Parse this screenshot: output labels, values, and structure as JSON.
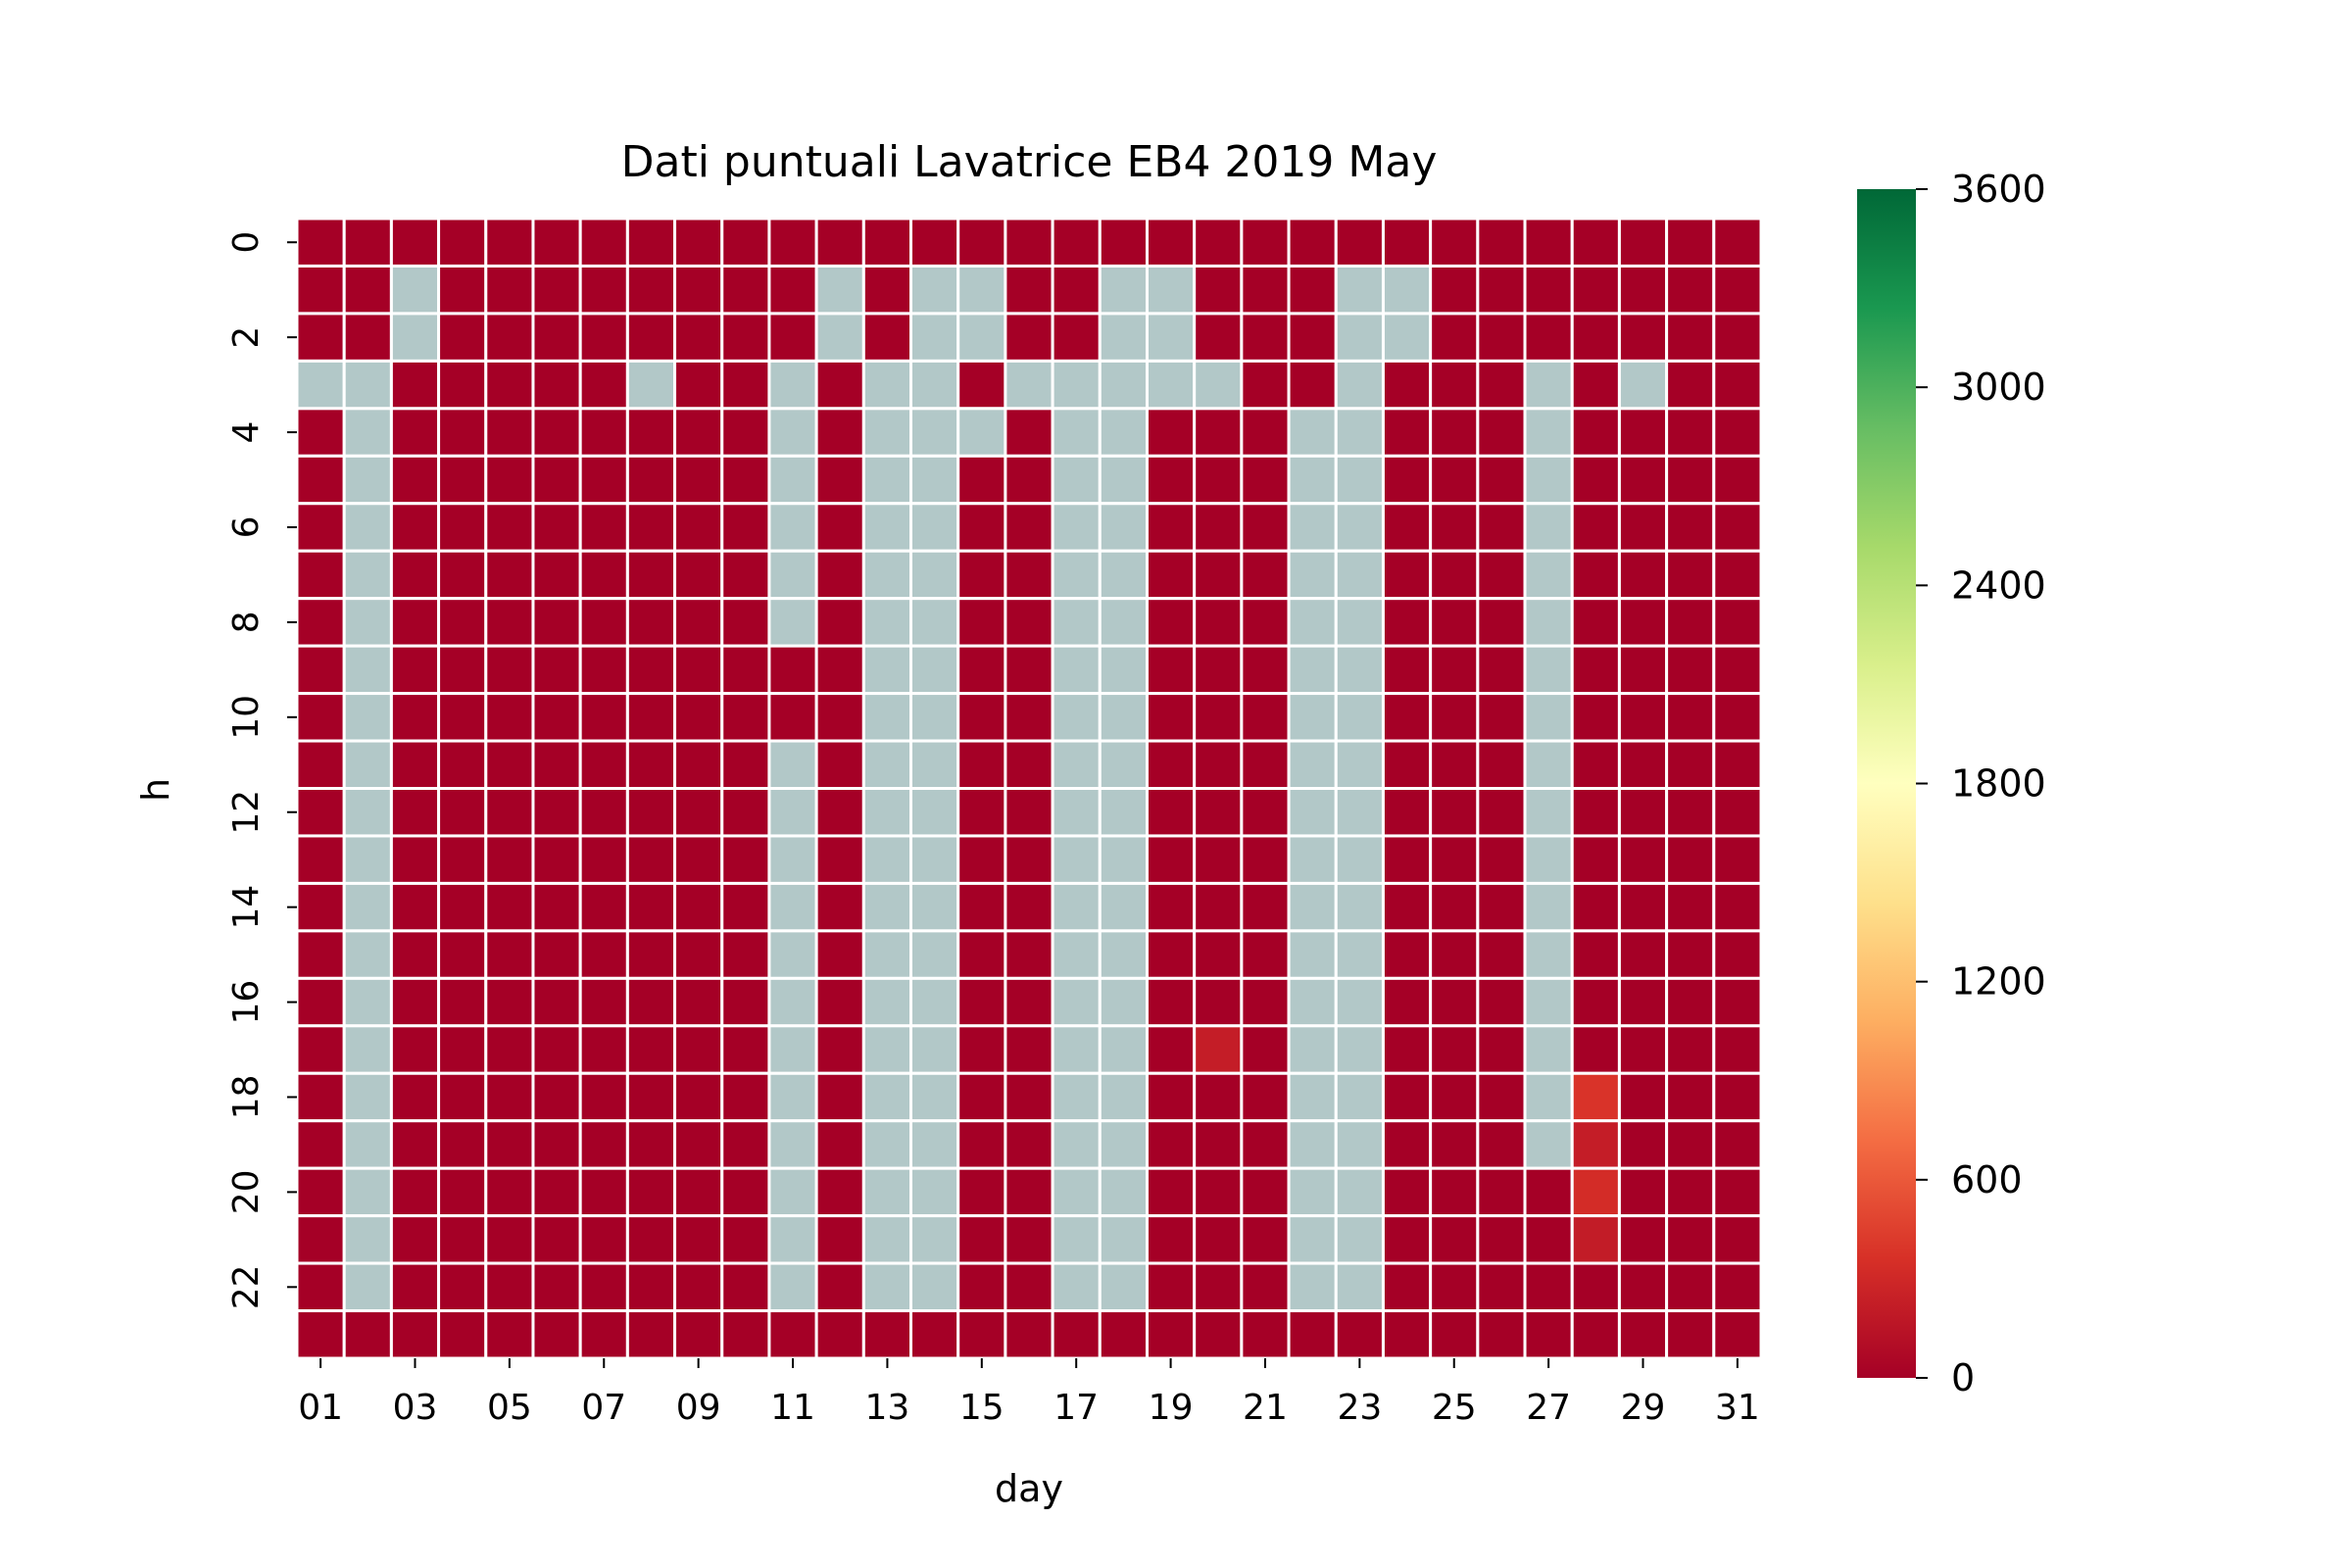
{
  "chart_data": {
    "type": "heatmap",
    "title": "Dati puntuali Lavatrice EB4 2019 May",
    "xlabel": "day",
    "ylabel": "h",
    "x_categories": [
      "01",
      "02",
      "03",
      "04",
      "05",
      "06",
      "07",
      "08",
      "09",
      "10",
      "11",
      "12",
      "13",
      "14",
      "15",
      "16",
      "17",
      "18",
      "19",
      "20",
      "21",
      "22",
      "23",
      "24",
      "25",
      "26",
      "27",
      "28",
      "29",
      "30",
      "31"
    ],
    "x_tick_labels": [
      "01",
      "03",
      "05",
      "07",
      "09",
      "11",
      "13",
      "15",
      "17",
      "19",
      "21",
      "23",
      "25",
      "27",
      "29",
      "31"
    ],
    "y_categories": [
      "0",
      "1",
      "2",
      "3",
      "4",
      "5",
      "6",
      "7",
      "8",
      "9",
      "10",
      "11",
      "12",
      "13",
      "14",
      "15",
      "16",
      "17",
      "18",
      "19",
      "20",
      "21",
      "22",
      "23"
    ],
    "y_tick_labels": [
      "0",
      "2",
      "4",
      "6",
      "8",
      "10",
      "12",
      "14",
      "16",
      "18",
      "20",
      "22"
    ],
    "colorbar": {
      "min": 0,
      "max": 3600,
      "ticks": [
        "0",
        "600",
        "1200",
        "1800",
        "2400",
        "3000",
        "3600"
      ],
      "colormap": "RdYlGn",
      "stops": [
        "#a50026",
        "#d73027",
        "#f46d43",
        "#fdae61",
        "#fee08b",
        "#ffffbf",
        "#d9ef8b",
        "#a6d96a",
        "#66bd63",
        "#1a9850",
        "#006837"
      ]
    },
    "missing_color": "#b2c8c8",
    "cell_border_color": "#ffffff",
    "grid": false,
    "values_by_day": [
      [
        0,
        0,
        0,
        null,
        0,
        0,
        0,
        0,
        0,
        0,
        0,
        0,
        0,
        0,
        0,
        0,
        0,
        0,
        0,
        0,
        0,
        0,
        0,
        0
      ],
      [
        0,
        0,
        0,
        null,
        null,
        null,
        null,
        null,
        null,
        null,
        null,
        null,
        null,
        null,
        null,
        null,
        null,
        null,
        null,
        null,
        null,
        null,
        null,
        0
      ],
      [
        0,
        null,
        null,
        0,
        0,
        0,
        0,
        0,
        0,
        0,
        0,
        0,
        0,
        0,
        0,
        0,
        0,
        0,
        0,
        0,
        0,
        0,
        0,
        0
      ],
      [
        0,
        0,
        0,
        0,
        0,
        0,
        0,
        0,
        0,
        0,
        0,
        0,
        0,
        0,
        0,
        0,
        0,
        0,
        0,
        0,
        0,
        0,
        0,
        0
      ],
      [
        0,
        0,
        0,
        0,
        0,
        0,
        0,
        0,
        0,
        0,
        0,
        0,
        0,
        0,
        0,
        0,
        0,
        0,
        0,
        0,
        0,
        0,
        0,
        0
      ],
      [
        0,
        0,
        0,
        0,
        0,
        0,
        0,
        0,
        0,
        0,
        0,
        0,
        0,
        0,
        0,
        0,
        0,
        0,
        0,
        0,
        0,
        0,
        0,
        0
      ],
      [
        0,
        0,
        0,
        0,
        0,
        0,
        0,
        0,
        0,
        0,
        0,
        0,
        0,
        0,
        0,
        0,
        0,
        0,
        0,
        0,
        0,
        0,
        0,
        0
      ],
      [
        0,
        0,
        0,
        null,
        0,
        0,
        0,
        0,
        0,
        0,
        0,
        0,
        0,
        0,
        0,
        0,
        0,
        0,
        0,
        0,
        0,
        0,
        0,
        0
      ],
      [
        0,
        0,
        0,
        0,
        0,
        0,
        0,
        0,
        0,
        0,
        0,
        0,
        0,
        0,
        0,
        0,
        0,
        0,
        0,
        0,
        0,
        0,
        0,
        0
      ],
      [
        0,
        0,
        0,
        0,
        0,
        0,
        0,
        0,
        0,
        0,
        0,
        0,
        0,
        0,
        0,
        0,
        0,
        0,
        0,
        0,
        0,
        0,
        0,
        0
      ],
      [
        0,
        0,
        0,
        null,
        null,
        null,
        null,
        null,
        null,
        0,
        0,
        null,
        null,
        null,
        null,
        null,
        null,
        null,
        null,
        null,
        null,
        null,
        null,
        0
      ],
      [
        0,
        null,
        null,
        0,
        0,
        0,
        0,
        0,
        0,
        0,
        0,
        0,
        0,
        0,
        0,
        0,
        0,
        0,
        0,
        0,
        0,
        0,
        0,
        0
      ],
      [
        0,
        0,
        0,
        null,
        null,
        null,
        null,
        null,
        null,
        null,
        null,
        null,
        null,
        null,
        null,
        null,
        null,
        null,
        null,
        null,
        null,
        null,
        null,
        0
      ],
      [
        0,
        null,
        null,
        null,
        null,
        null,
        null,
        null,
        null,
        null,
        null,
        null,
        null,
        null,
        null,
        null,
        null,
        null,
        null,
        null,
        null,
        null,
        null,
        0
      ],
      [
        0,
        null,
        null,
        0,
        null,
        0,
        0,
        0,
        0,
        0,
        0,
        0,
        0,
        0,
        0,
        0,
        0,
        0,
        0,
        0,
        0,
        0,
        0,
        0
      ],
      [
        0,
        0,
        0,
        null,
        0,
        0,
        0,
        0,
        0,
        0,
        0,
        0,
        0,
        0,
        0,
        0,
        0,
        0,
        0,
        0,
        0,
        0,
        0,
        0
      ],
      [
        0,
        0,
        0,
        null,
        null,
        null,
        null,
        null,
        null,
        null,
        null,
        null,
        null,
        null,
        null,
        null,
        null,
        null,
        null,
        null,
        null,
        null,
        null,
        0
      ],
      [
        0,
        null,
        null,
        null,
        null,
        null,
        null,
        null,
        null,
        null,
        null,
        null,
        null,
        null,
        null,
        null,
        null,
        null,
        null,
        null,
        null,
        null,
        null,
        0
      ],
      [
        0,
        null,
        null,
        null,
        0,
        0,
        0,
        0,
        0,
        0,
        0,
        0,
        0,
        0,
        0,
        0,
        0,
        0,
        0,
        0,
        0,
        0,
        0,
        0
      ],
      [
        0,
        0,
        0,
        null,
        0,
        0,
        0,
        0,
        0,
        0,
        0,
        0,
        0,
        0,
        0,
        0,
        0,
        220,
        0,
        0,
        0,
        0,
        0,
        0
      ],
      [
        0,
        0,
        0,
        0,
        0,
        0,
        0,
        0,
        0,
        0,
        0,
        0,
        0,
        0,
        0,
        0,
        0,
        0,
        0,
        0,
        0,
        0,
        0,
        0
      ],
      [
        0,
        0,
        0,
        0,
        null,
        null,
        null,
        null,
        null,
        null,
        null,
        null,
        null,
        null,
        null,
        null,
        null,
        null,
        null,
        null,
        null,
        null,
        null,
        0
      ],
      [
        0,
        null,
        null,
        null,
        null,
        null,
        null,
        null,
        null,
        null,
        null,
        null,
        null,
        null,
        null,
        null,
        null,
        null,
        null,
        null,
        null,
        null,
        null,
        0
      ],
      [
        0,
        null,
        null,
        0,
        0,
        0,
        0,
        0,
        0,
        0,
        0,
        0,
        0,
        0,
        0,
        0,
        0,
        0,
        0,
        0,
        0,
        0,
        0,
        0
      ],
      [
        0,
        0,
        0,
        0,
        0,
        0,
        0,
        0,
        0,
        0,
        0,
        0,
        0,
        0,
        0,
        0,
        0,
        0,
        0,
        0,
        0,
        0,
        0,
        0
      ],
      [
        0,
        0,
        0,
        0,
        0,
        0,
        0,
        0,
        0,
        0,
        0,
        0,
        0,
        0,
        0,
        0,
        0,
        0,
        0,
        0,
        0,
        0,
        0,
        0
      ],
      [
        0,
        0,
        0,
        null,
        null,
        null,
        null,
        null,
        null,
        null,
        null,
        null,
        null,
        null,
        null,
        null,
        null,
        null,
        null,
        null,
        0,
        0,
        0,
        0
      ],
      [
        0,
        0,
        0,
        0,
        0,
        0,
        0,
        0,
        0,
        0,
        0,
        0,
        0,
        0,
        0,
        0,
        0,
        0,
        380,
        220,
        330,
        210,
        0,
        0
      ],
      [
        0,
        0,
        0,
        null,
        0,
        0,
        0,
        0,
        0,
        0,
        0,
        0,
        0,
        0,
        0,
        0,
        0,
        0,
        0,
        0,
        0,
        0,
        0,
        0
      ],
      [
        0,
        0,
        0,
        0,
        0,
        0,
        0,
        0,
        0,
        0,
        0,
        0,
        0,
        0,
        0,
        0,
        0,
        0,
        0,
        0,
        0,
        0,
        0,
        0
      ],
      [
        0,
        0,
        0,
        0,
        0,
        0,
        0,
        0,
        0,
        0,
        0,
        0,
        0,
        0,
        0,
        0,
        0,
        0,
        0,
        0,
        0,
        0,
        0,
        0
      ]
    ]
  }
}
